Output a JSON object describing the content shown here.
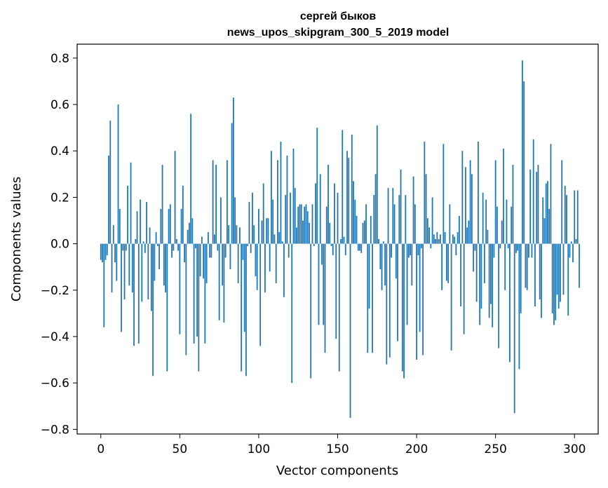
{
  "chart_data": {
    "type": "bar",
    "title": "сергей быков",
    "subtitle": "news_upos_skipgram_300_5_2019 model",
    "xlabel": "Vector components",
    "ylabel": "Components values",
    "xlim": [
      -15,
      315
    ],
    "ylim": [
      -0.82,
      0.86
    ],
    "xticks": [
      0,
      50,
      100,
      150,
      200,
      250,
      300
    ],
    "yticks": [
      -0.8,
      -0.6,
      -0.4,
      -0.2,
      0.0,
      0.2,
      0.4,
      0.6,
      0.8
    ],
    "xtick_labels": [
      "0",
      "50",
      "100",
      "150",
      "200",
      "250",
      "300"
    ],
    "ytick_labels": [
      "−0.8",
      "−0.6",
      "−0.4",
      "−0.2",
      "0.0",
      "0.2",
      "0.4",
      "0.6",
      "0.8"
    ],
    "grid": false,
    "bar_color": "#1f77b4",
    "values": [
      -0.07,
      -0.08,
      -0.36,
      -0.07,
      -0.05,
      0.38,
      0.53,
      -0.21,
      0.08,
      -0.08,
      -0.16,
      0.6,
      0.15,
      -0.38,
      -0.03,
      -0.24,
      -0.03,
      0.25,
      -0.18,
      0.35,
      -0.21,
      -0.44,
      0.02,
      0.14,
      -0.43,
      0.19,
      -0.25,
      0.01,
      -0.04,
      0.18,
      -0.24,
      0.07,
      -0.29,
      -0.57,
      -0.16,
      0.05,
      -0.01,
      -0.11,
      0.15,
      0.34,
      -0.18,
      -0.21,
      -0.55,
      0.15,
      0.17,
      -0.06,
      -0.03,
      0.4,
      0.02,
      -0.03,
      -0.39,
      0.15,
      0.25,
      -0.08,
      -0.48,
      0.06,
      0.09,
      0.56,
      0.11,
      -0.43,
      -0.02,
      -0.4,
      -0.55,
      -0.14,
      0.03,
      -0.15,
      -0.43,
      -0.17,
      0.05,
      -0.06,
      -0.06,
      0.36,
      0.04,
      0.34,
      -0.03,
      -0.33,
      0.2,
      -0.18,
      -0.34,
      -0.06,
      0.36,
      0.08,
      -0.11,
      0.52,
      0.63,
      0.2,
      0.08,
      -0.17,
      0.07,
      -0.55,
      -0.07,
      -0.38,
      -0.57,
      -0.01,
      0.18,
      -0.04,
      0.22,
      0.08,
      -0.14,
      -0.2,
      0.15,
      -0.44,
      0.1,
      0.26,
      -0.21,
      0.11,
      0.11,
      -0.12,
      0.4,
      0.19,
      0.04,
      -0.17,
      0.36,
      0.05,
      0.44,
      0.01,
      -0.23,
      0.21,
      0.38,
      -0.06,
      0.22,
      -0.6,
      0.41,
      0.24,
      0.07,
      0.16,
      0.17,
      0.17,
      0.1,
      0.16,
      0.17,
      0.14,
      0.09,
      -0.58,
      0.17,
      -0.01,
      0.26,
      0.5,
      -0.35,
      0.3,
      -0.09,
      -0.35,
      -0.47,
      0.16,
      0.34,
      0.09,
      -0.01,
      -0.05,
      0.26,
      -0.41,
      0.22,
      -0.55,
      0.02,
      0.49,
      0.03,
      -0.05,
      0.4,
      0.37,
      -0.75,
      0.47,
      0.27,
      0.19,
      0.12,
      -0.03,
      -0.03,
      -0.04,
      0.09,
      0.1,
      0.17,
      -0.47,
      -0.28,
      0.12,
      -0.47,
      0.21,
      0.3,
      0.51,
      0.02,
      -0.11,
      -0.2,
      0.01,
      -0.18,
      -0.52,
      0.24,
      -0.49,
      -0.06,
      0.24,
      0.17,
      -0.15,
      -0.42,
      0.21,
      0.32,
      -0.55,
      -0.58,
      0.21,
      -0.35,
      -0.06,
      -0.05,
      -0.18,
      0.29,
      0.17,
      -0.5,
      -0.05,
      -0.38,
      -0.02,
      -0.48,
      0.44,
      0.3,
      0.11,
      0.07,
      -0.02,
      0.2,
      0.04,
      0.02,
      0.05,
      0.02,
      0.04,
      -0.2,
      0.43,
      0.05,
      -0.16,
      -0.17,
      0.17,
      -0.46,
      0.04,
      0.03,
      -0.05,
      0.05,
      0.12,
      -0.27,
      0.4,
      -0.39,
      0.33,
      0.07,
      0.1,
      0.36,
      0.3,
      -0.12,
      -0.03,
      -0.25,
      0.44,
      -0.35,
      -0.28,
      0.22,
      -0.17,
      0.19,
      0.06,
      -0.32,
      -0.26,
      -0.36,
      -0.06,
      0.36,
      0.16,
      -0.45,
      -0.02,
      0.1,
      0.41,
      -0.2,
      0.19,
      -0.02,
      -0.51,
      0.16,
      0.34,
      -0.73,
      -0.04,
      -0.03,
      -0.54,
      -0.3,
      0.79,
      0.7,
      -0.19,
      -0.2,
      -0.06,
      0.32,
      -0.06,
      0.45,
      -0.27,
      0.31,
      0.34,
      -0.24,
      -0.32,
      0.2,
      0.11,
      0.26,
      0.27,
      0.15,
      0.43,
      -0.3,
      -0.35,
      -0.33,
      -0.22,
      -0.28,
      -0.25,
      0.36,
      -0.22,
      0.25,
      0.21,
      -0.31,
      -0.06,
      0.01,
      -0.08,
      0.23,
      0.02,
      0.23,
      -0.19
    ]
  }
}
